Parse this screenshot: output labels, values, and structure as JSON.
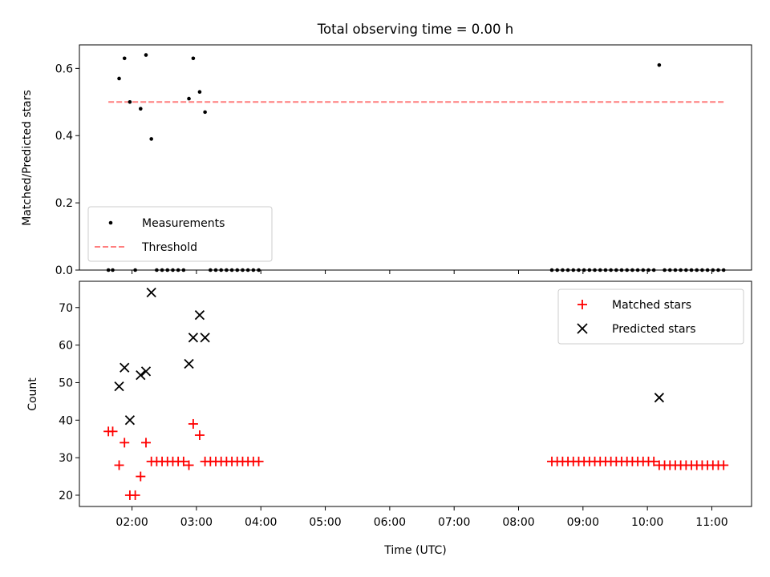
{
  "title": "Total observing time = 0.00 h",
  "chart_data": [
    {
      "type": "scatter",
      "ylabel": "Matched/Predicted stars",
      "ylim": [
        0,
        0.67
      ],
      "yticks": [
        0.0,
        0.2,
        0.4,
        0.6
      ],
      "ytick_labels": [
        "0.0",
        "0.2",
        "0.4",
        "0.6"
      ],
      "legend_placement": "lower-left",
      "series": [
        {
          "name": "Measurements",
          "marker": "dot",
          "color": "#000000",
          "points": [
            [
              "01:38",
              0
            ],
            [
              "01:42",
              0
            ],
            [
              "01:48",
              0.57
            ],
            [
              "01:53",
              0.63
            ],
            [
              "01:58",
              0.5
            ],
            [
              "02:03",
              0
            ],
            [
              "02:08",
              0.48
            ],
            [
              "02:13",
              0.64
            ],
            [
              "02:18",
              0.39
            ],
            [
              "02:23",
              0
            ],
            [
              "02:28",
              0
            ],
            [
              "02:33",
              0
            ],
            [
              "02:38",
              0
            ],
            [
              "02:43",
              0
            ],
            [
              "02:48",
              0
            ],
            [
              "02:53",
              0.51
            ],
            [
              "02:57",
              0.63
            ],
            [
              "03:03",
              0.53
            ],
            [
              "03:08",
              0.47
            ],
            [
              "03:13",
              0
            ],
            [
              "03:18",
              0
            ],
            [
              "03:23",
              0
            ],
            [
              "03:28",
              0
            ],
            [
              "03:33",
              0
            ],
            [
              "03:38",
              0
            ],
            [
              "03:43",
              0
            ],
            [
              "03:48",
              0
            ],
            [
              "03:53",
              0
            ],
            [
              "03:58",
              0
            ],
            [
              "08:31",
              0
            ],
            [
              "08:36",
              0
            ],
            [
              "08:41",
              0
            ],
            [
              "08:46",
              0
            ],
            [
              "08:51",
              0
            ],
            [
              "08:56",
              0
            ],
            [
              "09:01",
              0
            ],
            [
              "09:06",
              0
            ],
            [
              "09:11",
              0
            ],
            [
              "09:16",
              0
            ],
            [
              "09:21",
              0
            ],
            [
              "09:26",
              0
            ],
            [
              "09:31",
              0
            ],
            [
              "09:36",
              0
            ],
            [
              "09:41",
              0
            ],
            [
              "09:46",
              0
            ],
            [
              "09:51",
              0
            ],
            [
              "09:56",
              0
            ],
            [
              "10:01",
              0
            ],
            [
              "10:06",
              0
            ],
            [
              "10:11",
              0.61
            ],
            [
              "10:16",
              0
            ],
            [
              "10:21",
              0
            ],
            [
              "10:26",
              0
            ],
            [
              "10:31",
              0
            ],
            [
              "10:36",
              0
            ],
            [
              "10:41",
              0
            ],
            [
              "10:46",
              0
            ],
            [
              "10:51",
              0
            ],
            [
              "10:56",
              0
            ],
            [
              "11:01",
              0
            ],
            [
              "11:06",
              0
            ],
            [
              "11:11",
              0
            ]
          ]
        },
        {
          "name": "Threshold",
          "style": "dashed",
          "color": "#ff7f7f",
          "points": [
            [
              "01:38",
              0.5
            ],
            [
              "11:11",
              0.5
            ]
          ]
        }
      ]
    },
    {
      "type": "scatter",
      "xlabel": "Time (UTC)",
      "ylabel": "Count",
      "ylim": [
        17,
        77
      ],
      "yticks": [
        20,
        30,
        40,
        50,
        60,
        70
      ],
      "xticks": [
        "02:00",
        "03:00",
        "04:00",
        "05:00",
        "06:00",
        "07:00",
        "08:00",
        "09:00",
        "10:00",
        "11:00"
      ],
      "legend_placement": "upper-right",
      "series": [
        {
          "name": "Matched stars",
          "marker": "plus",
          "color": "#ff0000",
          "points": [
            [
              "01:38",
              37
            ],
            [
              "01:42",
              37
            ],
            [
              "01:48",
              28
            ],
            [
              "01:53",
              34
            ],
            [
              "01:58",
              20
            ],
            [
              "02:03",
              20
            ],
            [
              "02:08",
              25
            ],
            [
              "02:13",
              34
            ],
            [
              "02:18",
              29
            ],
            [
              "02:23",
              29
            ],
            [
              "02:28",
              29
            ],
            [
              "02:33",
              29
            ],
            [
              "02:38",
              29
            ],
            [
              "02:43",
              29
            ],
            [
              "02:48",
              29
            ],
            [
              "02:53",
              28
            ],
            [
              "02:57",
              39
            ],
            [
              "03:03",
              36
            ],
            [
              "03:08",
              29
            ],
            [
              "03:13",
              29
            ],
            [
              "03:18",
              29
            ],
            [
              "03:23",
              29
            ],
            [
              "03:28",
              29
            ],
            [
              "03:33",
              29
            ],
            [
              "03:38",
              29
            ],
            [
              "03:43",
              29
            ],
            [
              "03:48",
              29
            ],
            [
              "03:53",
              29
            ],
            [
              "03:58",
              29
            ],
            [
              "08:31",
              29
            ],
            [
              "08:36",
              29
            ],
            [
              "08:41",
              29
            ],
            [
              "08:46",
              29
            ],
            [
              "08:51",
              29
            ],
            [
              "08:56",
              29
            ],
            [
              "09:01",
              29
            ],
            [
              "09:06",
              29
            ],
            [
              "09:11",
              29
            ],
            [
              "09:16",
              29
            ],
            [
              "09:21",
              29
            ],
            [
              "09:26",
              29
            ],
            [
              "09:31",
              29
            ],
            [
              "09:36",
              29
            ],
            [
              "09:41",
              29
            ],
            [
              "09:46",
              29
            ],
            [
              "09:51",
              29
            ],
            [
              "09:56",
              29
            ],
            [
              "10:01",
              29
            ],
            [
              "10:06",
              29
            ],
            [
              "10:11",
              28
            ],
            [
              "10:16",
              28
            ],
            [
              "10:21",
              28
            ],
            [
              "10:26",
              28
            ],
            [
              "10:31",
              28
            ],
            [
              "10:36",
              28
            ],
            [
              "10:41",
              28
            ],
            [
              "10:46",
              28
            ],
            [
              "10:51",
              28
            ],
            [
              "10:56",
              28
            ],
            [
              "11:01",
              28
            ],
            [
              "11:06",
              28
            ],
            [
              "11:11",
              28
            ]
          ]
        },
        {
          "name": "Predicted stars",
          "marker": "x",
          "color": "#000000",
          "points": [
            [
              "01:48",
              49
            ],
            [
              "01:53",
              54
            ],
            [
              "01:58",
              40
            ],
            [
              "02:08",
              52
            ],
            [
              "02:13",
              53
            ],
            [
              "02:18",
              74
            ],
            [
              "02:53",
              55
            ],
            [
              "02:57",
              62
            ],
            [
              "03:03",
              68
            ],
            [
              "03:08",
              62
            ],
            [
              "10:11",
              46
            ]
          ]
        }
      ]
    }
  ]
}
